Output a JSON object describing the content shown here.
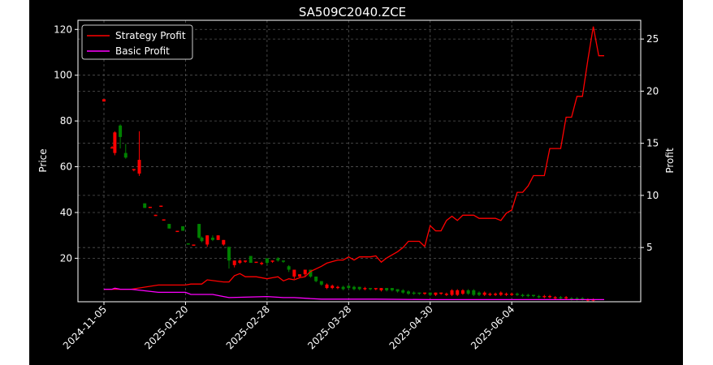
{
  "chart_data": {
    "type": "candlestick",
    "title": "SA509C2040.ZCE",
    "xlabel": "",
    "ylabel": "Price",
    "y2label": "Profit",
    "grid": true,
    "legend_position": "top-left",
    "x_ticks": [
      "2024-11-05",
      "2025-01-20",
      "2025-02-28",
      "2025-03-28",
      "2025-04-30",
      "2025-06-04"
    ],
    "y_ticks": [
      20,
      40,
      60,
      80,
      100,
      120
    ],
    "y2_ticks": [
      5,
      10,
      15,
      20,
      25
    ],
    "colors": {
      "up": "#008000",
      "down": "#ff0000",
      "strategy": "#ff0000",
      "basic": "#ff00ff",
      "grid": "#555555"
    },
    "candles": [
      {
        "i": 0,
        "o": 88.5,
        "c": 89.5,
        "h": 89.5,
        "l": 88.5,
        "dir": "down"
      },
      {
        "i": 3,
        "o": 68,
        "c": 68.5,
        "h": 69,
        "l": 68,
        "dir": "down"
      },
      {
        "i": 4,
        "o": 75,
        "c": 66,
        "h": 75.5,
        "l": 65,
        "dir": "down"
      },
      {
        "i": 6,
        "o": 73,
        "c": 78,
        "h": 78.5,
        "l": 68,
        "dir": "up"
      },
      {
        "i": 8,
        "o": 66,
        "c": 64,
        "h": 70,
        "l": 63.5,
        "dir": "up"
      },
      {
        "i": 11,
        "o": 59,
        "c": 58.5,
        "h": 59,
        "l": 58,
        "dir": "down"
      },
      {
        "i": 13,
        "o": 63,
        "c": 57,
        "h": 75.5,
        "l": 56,
        "dir": "down"
      },
      {
        "i": 15,
        "o": 44,
        "c": 42,
        "h": 44,
        "l": 42,
        "dir": "up"
      },
      {
        "i": 17,
        "o": 42.5,
        "c": 42.5,
        "h": 42.5,
        "l": 42.5,
        "dir": "down"
      },
      {
        "i": 19,
        "o": 39,
        "c": 38.5,
        "h": 39,
        "l": 38.5,
        "dir": "down"
      },
      {
        "i": 21,
        "o": 43,
        "c": 43,
        "h": 43,
        "l": 43,
        "dir": "down"
      },
      {
        "i": 22,
        "o": 37,
        "c": 37,
        "h": 37,
        "l": 37,
        "dir": "down"
      },
      {
        "i": 24,
        "o": 35,
        "c": 33,
        "h": 35,
        "l": 33,
        "dir": "up"
      },
      {
        "i": 27,
        "o": 32,
        "c": 32,
        "h": 32,
        "l": 32,
        "dir": "down"
      },
      {
        "i": 29,
        "o": 34,
        "c": 32,
        "h": 34,
        "l": 32,
        "dir": "up"
      },
      {
        "i": 31,
        "o": 26.5,
        "c": 26,
        "h": 26.5,
        "l": 26,
        "dir": "up"
      },
      {
        "i": 33,
        "o": 26,
        "c": 26,
        "h": 26,
        "l": 26,
        "dir": "down"
      },
      {
        "i": 35,
        "o": 35,
        "c": 29,
        "h": 35,
        "l": 28.5,
        "dir": "up"
      },
      {
        "i": 36,
        "o": 29,
        "c": 27.5,
        "h": 29.5,
        "l": 27,
        "dir": "up"
      },
      {
        "i": 38,
        "o": 30,
        "c": 26,
        "h": 30,
        "l": 25,
        "dir": "down"
      },
      {
        "i": 40,
        "o": 29,
        "c": 28,
        "h": 30,
        "l": 27.5,
        "dir": "up"
      },
      {
        "i": 42,
        "o": 30,
        "c": 28,
        "h": 30,
        "l": 28,
        "dir": "down"
      },
      {
        "i": 44,
        "o": 28,
        "c": 26,
        "h": 28,
        "l": 25.5,
        "dir": "down"
      },
      {
        "i": 46,
        "o": 25,
        "c": 19,
        "h": 25,
        "l": 15.5,
        "dir": "up"
      },
      {
        "i": 48,
        "o": 19,
        "c": 17,
        "h": 19,
        "l": 16,
        "dir": "down"
      },
      {
        "i": 50,
        "o": 19,
        "c": 18,
        "h": 19.5,
        "l": 17.5,
        "dir": "down"
      },
      {
        "i": 52,
        "o": 19,
        "c": 18.5,
        "h": 19,
        "l": 18,
        "dir": "down"
      },
      {
        "i": 54,
        "o": 21,
        "c": 18,
        "h": 21,
        "l": 18,
        "dir": "up"
      },
      {
        "i": 56,
        "o": 18.5,
        "c": 18.5,
        "h": 18.5,
        "l": 18.5,
        "dir": "down"
      },
      {
        "i": 58,
        "o": 18,
        "c": 18,
        "h": 18.5,
        "l": 17,
        "dir": "down"
      },
      {
        "i": 60,
        "o": 20,
        "c": 18,
        "h": 20,
        "l": 17,
        "dir": "up"
      },
      {
        "i": 62,
        "o": 19,
        "c": 18.5,
        "h": 19,
        "l": 18,
        "dir": "down"
      },
      {
        "i": 64,
        "o": 20,
        "c": 19,
        "h": 20.5,
        "l": 18.5,
        "dir": "up"
      },
      {
        "i": 66,
        "o": 19,
        "c": 18.5,
        "h": 19,
        "l": 18,
        "dir": "up"
      },
      {
        "i": 68,
        "o": 16.5,
        "c": 15,
        "h": 17,
        "l": 14,
        "dir": "up"
      },
      {
        "i": 70,
        "o": 15,
        "c": 12,
        "h": 15,
        "l": 11,
        "dir": "down"
      },
      {
        "i": 72,
        "o": 13,
        "c": 12,
        "h": 13,
        "l": 11.5,
        "dir": "down"
      },
      {
        "i": 74,
        "o": 15,
        "c": 13,
        "h": 15,
        "l": 12,
        "dir": "down"
      },
      {
        "i": 76,
        "o": 15,
        "c": 12,
        "h": 15,
        "l": 11.5,
        "dir": "up"
      },
      {
        "i": 78,
        "o": 12,
        "c": 10,
        "h": 12,
        "l": 9.5,
        "dir": "up"
      },
      {
        "i": 80,
        "o": 10,
        "c": 8.5,
        "h": 10,
        "l": 8,
        "dir": "up"
      },
      {
        "i": 82,
        "o": 8.5,
        "c": 7,
        "h": 9,
        "l": 6.5,
        "dir": "down"
      },
      {
        "i": 84,
        "o": 8,
        "c": 7,
        "h": 8.5,
        "l": 6.5,
        "dir": "down"
      },
      {
        "i": 86,
        "o": 7.5,
        "c": 7,
        "h": 8,
        "l": 6.5,
        "dir": "down"
      },
      {
        "i": 88,
        "o": 7.5,
        "c": 6.5,
        "h": 8,
        "l": 6,
        "dir": "up"
      },
      {
        "i": 90,
        "o": 8,
        "c": 7,
        "h": 8,
        "l": 6.5,
        "dir": "up"
      },
      {
        "i": 92,
        "o": 7.5,
        "c": 6.5,
        "h": 8,
        "l": 6,
        "dir": "up"
      },
      {
        "i": 94,
        "o": 7.5,
        "c": 6.5,
        "h": 7.5,
        "l": 6,
        "dir": "up"
      },
      {
        "i": 96,
        "o": 7,
        "c": 6.5,
        "h": 7.5,
        "l": 6,
        "dir": "down"
      },
      {
        "i": 98,
        "o": 7,
        "c": 6.5,
        "h": 7,
        "l": 6,
        "dir": "up"
      },
      {
        "i": 100,
        "o": 7,
        "c": 6.5,
        "h": 7,
        "l": 6,
        "dir": "down"
      },
      {
        "i": 102,
        "o": 7,
        "c": 6,
        "h": 7,
        "l": 5.5,
        "dir": "down"
      },
      {
        "i": 104,
        "o": 7,
        "c": 6,
        "h": 7,
        "l": 5.5,
        "dir": "up"
      },
      {
        "i": 106,
        "o": 7,
        "c": 6,
        "h": 7,
        "l": 5.5,
        "dir": "up"
      },
      {
        "i": 108,
        "o": 6.5,
        "c": 5.5,
        "h": 6.5,
        "l": 5,
        "dir": "up"
      },
      {
        "i": 110,
        "o": 6,
        "c": 5,
        "h": 6.5,
        "l": 4.5,
        "dir": "up"
      },
      {
        "i": 112,
        "o": 5.5,
        "c": 4.5,
        "h": 6,
        "l": 4,
        "dir": "up"
      },
      {
        "i": 114,
        "o": 5,
        "c": 4.5,
        "h": 5.5,
        "l": 4,
        "dir": "up"
      },
      {
        "i": 116,
        "o": 5,
        "c": 4.5,
        "h": 5,
        "l": 4,
        "dir": "up"
      },
      {
        "i": 118,
        "o": 5,
        "c": 4.5,
        "h": 5,
        "l": 4,
        "dir": "down"
      },
      {
        "i": 120,
        "o": 5,
        "c": 4,
        "h": 5,
        "l": 3.5,
        "dir": "up"
      },
      {
        "i": 122,
        "o": 5,
        "c": 4,
        "h": 5,
        "l": 3.5,
        "dir": "down"
      },
      {
        "i": 124,
        "o": 5,
        "c": 4.5,
        "h": 5,
        "l": 4,
        "dir": "down"
      },
      {
        "i": 126,
        "o": 4.5,
        "c": 4,
        "h": 5,
        "l": 3.5,
        "dir": "down"
      },
      {
        "i": 128,
        "o": 6,
        "c": 4,
        "h": 6.5,
        "l": 3.5,
        "dir": "down"
      },
      {
        "i": 130,
        "o": 6,
        "c": 4,
        "h": 6.5,
        "l": 3.5,
        "dir": "down"
      },
      {
        "i": 132,
        "o": 6,
        "c": 4.5,
        "h": 6.5,
        "l": 4,
        "dir": "down"
      },
      {
        "i": 134,
        "o": 6,
        "c": 4.5,
        "h": 6.5,
        "l": 4,
        "dir": "up"
      },
      {
        "i": 136,
        "o": 6,
        "c": 4,
        "h": 6.5,
        "l": 3.5,
        "dir": "up"
      },
      {
        "i": 138,
        "o": 5,
        "c": 4,
        "h": 5.5,
        "l": 3.5,
        "dir": "up"
      },
      {
        "i": 140,
        "o": 5,
        "c": 4,
        "h": 5.5,
        "l": 3.5,
        "dir": "down"
      },
      {
        "i": 142,
        "o": 4.5,
        "c": 4,
        "h": 5,
        "l": 3.5,
        "dir": "down"
      },
      {
        "i": 144,
        "o": 4.5,
        "c": 4,
        "h": 5,
        "l": 3.5,
        "dir": "down"
      },
      {
        "i": 146,
        "o": 5,
        "c": 4,
        "h": 5.5,
        "l": 3.5,
        "dir": "down"
      },
      {
        "i": 148,
        "o": 4.5,
        "c": 4,
        "h": 5,
        "l": 3.5,
        "dir": "down"
      },
      {
        "i": 150,
        "o": 4.5,
        "c": 4,
        "h": 5,
        "l": 3.5,
        "dir": "down"
      },
      {
        "i": 152,
        "o": 4.5,
        "c": 4,
        "h": 5,
        "l": 3.5,
        "dir": "up"
      },
      {
        "i": 154,
        "o": 4,
        "c": 3.5,
        "h": 4.5,
        "l": 3,
        "dir": "up"
      },
      {
        "i": 156,
        "o": 4,
        "c": 3.5,
        "h": 4.5,
        "l": 3,
        "dir": "up"
      },
      {
        "i": 158,
        "o": 4,
        "c": 3.5,
        "h": 4,
        "l": 3,
        "dir": "up"
      },
      {
        "i": 160,
        "o": 3.5,
        "c": 3,
        "h": 4,
        "l": 2.5,
        "dir": "up"
      },
      {
        "i": 162,
        "o": 3.5,
        "c": 3,
        "h": 4,
        "l": 2.5,
        "dir": "down"
      },
      {
        "i": 164,
        "o": 3.5,
        "c": 3,
        "h": 4,
        "l": 2.5,
        "dir": "down"
      },
      {
        "i": 166,
        "o": 3,
        "c": 2.5,
        "h": 3.5,
        "l": 2,
        "dir": "down"
      },
      {
        "i": 168,
        "o": 3,
        "c": 2.5,
        "h": 3.5,
        "l": 2,
        "dir": "up"
      },
      {
        "i": 170,
        "o": 3,
        "c": 2.5,
        "h": 3.5,
        "l": 2,
        "dir": "down"
      },
      {
        "i": 172,
        "o": 2.5,
        "c": 2,
        "h": 3,
        "l": 1.5,
        "dir": "up"
      },
      {
        "i": 174,
        "o": 2.5,
        "c": 2,
        "h": 3,
        "l": 1.5,
        "dir": "up"
      },
      {
        "i": 176,
        "o": 2.5,
        "c": 2,
        "h": 3,
        "l": 1.5,
        "dir": "up"
      },
      {
        "i": 178,
        "o": 2,
        "c": 1.5,
        "h": 2.5,
        "l": 1,
        "dir": "down"
      },
      {
        "i": 180,
        "o": 2,
        "c": 1.5,
        "h": 2.5,
        "l": 1,
        "dir": "down"
      }
    ],
    "series": [
      {
        "name": "Strategy Profit",
        "color": "#ff0000",
        "axis": "right",
        "points": [
          [
            0,
            1.0
          ],
          [
            10,
            1.0
          ],
          [
            20,
            1.4
          ],
          [
            30,
            1.4
          ],
          [
            32,
            1.5
          ],
          [
            36,
            1.5
          ],
          [
            38,
            1.9
          ],
          [
            44,
            1.7
          ],
          [
            46,
            1.7
          ],
          [
            48,
            2.3
          ],
          [
            50,
            2.5
          ],
          [
            52,
            2.2
          ],
          [
            56,
            2.2
          ],
          [
            60,
            2.0
          ],
          [
            62,
            2.1
          ],
          [
            64,
            2.2
          ],
          [
            66,
            1.8
          ],
          [
            68,
            2.0
          ],
          [
            70,
            1.9
          ],
          [
            72,
            2.1
          ],
          [
            74,
            2.2
          ],
          [
            76,
            2.7
          ],
          [
            80,
            3.2
          ],
          [
            82,
            3.5
          ],
          [
            86,
            3.8
          ],
          [
            88,
            3.8
          ],
          [
            90,
            4.1
          ],
          [
            92,
            3.8
          ],
          [
            94,
            4.1
          ],
          [
            98,
            4.1
          ],
          [
            100,
            4.2
          ],
          [
            102,
            3.6
          ],
          [
            104,
            4.0
          ],
          [
            108,
            4.6
          ],
          [
            110,
            5.0
          ],
          [
            112,
            5.6
          ],
          [
            116,
            5.6
          ],
          [
            118,
            5.1
          ],
          [
            120,
            7.1
          ],
          [
            122,
            6.6
          ],
          [
            124,
            6.6
          ],
          [
            126,
            7.6
          ],
          [
            128,
            8.0
          ],
          [
            130,
            7.6
          ],
          [
            132,
            8.1
          ],
          [
            136,
            8.1
          ],
          [
            138,
            7.8
          ],
          [
            144,
            7.8
          ],
          [
            146,
            7.6
          ],
          [
            148,
            8.3
          ],
          [
            150,
            8.6
          ],
          [
            152,
            10.3
          ],
          [
            154,
            10.3
          ],
          [
            156,
            10.9
          ],
          [
            158,
            11.9
          ],
          [
            162,
            11.9
          ],
          [
            164,
            14.5
          ],
          [
            168,
            14.5
          ],
          [
            170,
            17.5
          ],
          [
            172,
            17.5
          ],
          [
            174,
            19.5
          ],
          [
            176,
            19.5
          ],
          [
            178,
            23.0
          ],
          [
            180,
            26.2
          ],
          [
            182,
            23.4
          ],
          [
            184,
            23.4
          ]
        ]
      },
      {
        "name": "Basic Profit",
        "color": "#ff00ff",
        "axis": "right",
        "points": [
          [
            0,
            1.0
          ],
          [
            3,
            1.0
          ],
          [
            4,
            1.1
          ],
          [
            6,
            1.0
          ],
          [
            10,
            1.0
          ],
          [
            20,
            0.7
          ],
          [
            30,
            0.7
          ],
          [
            32,
            0.5
          ],
          [
            40,
            0.5
          ],
          [
            44,
            0.3
          ],
          [
            46,
            0.2
          ],
          [
            60,
            0.3
          ],
          [
            66,
            0.2
          ],
          [
            70,
            0.2
          ],
          [
            76,
            0.1
          ],
          [
            80,
            0.05
          ],
          [
            100,
            0.05
          ],
          [
            120,
            0.0
          ],
          [
            150,
            0.0
          ],
          [
            184,
            0.0
          ]
        ]
      }
    ],
    "x_domain": [
      0,
      184
    ],
    "x_tick_index": [
      0,
      30,
      60,
      90,
      120,
      150
    ],
    "ylim": [
      1,
      124
    ],
    "y2lim": [
      -0.2,
      26.8
    ]
  }
}
